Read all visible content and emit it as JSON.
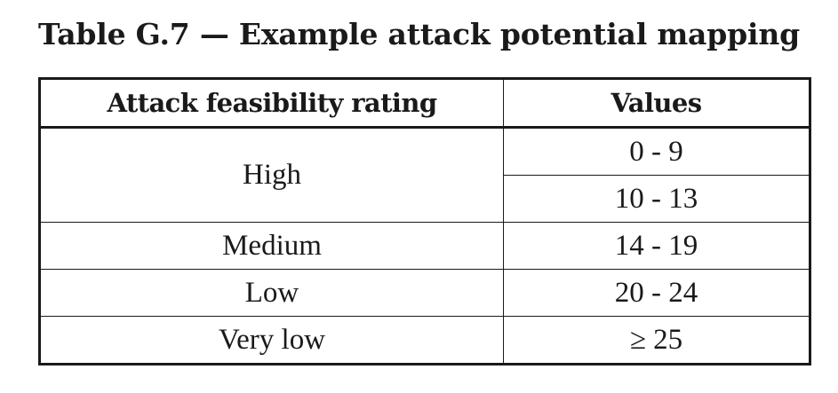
{
  "caption": "Table G.7 — Example attack potential mapping",
  "table": {
    "headers": [
      "Attack feasibility rating",
      "Values"
    ],
    "rows": [
      {
        "rating": "High",
        "values": [
          "0 - 9",
          "10 - 13"
        ]
      },
      {
        "rating": "Medium",
        "values": [
          "14 - 19"
        ]
      },
      {
        "rating": "Low",
        "values": [
          "20 - 24"
        ]
      },
      {
        "rating": "Very low",
        "values": [
          "≥ 25"
        ]
      }
    ]
  }
}
